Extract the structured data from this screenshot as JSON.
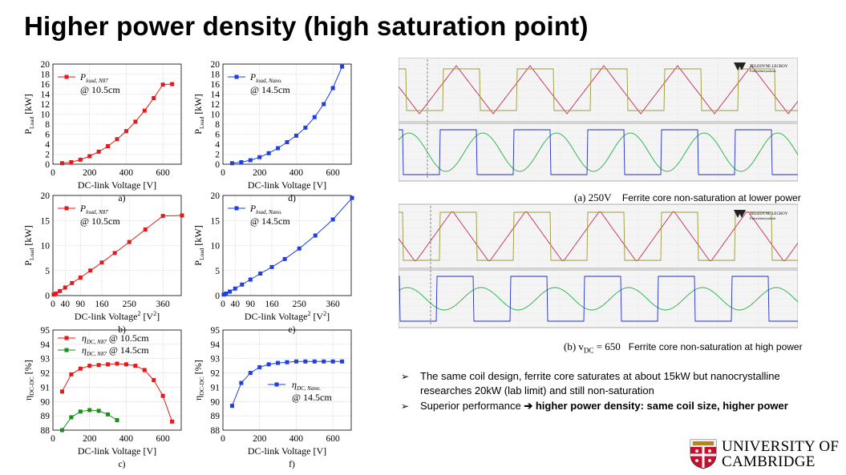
{
  "slide": {
    "title": "Higher power density (high saturation point)"
  },
  "colors": {
    "red": "#e31a1c",
    "blue": "#1f3fe0",
    "green": "#1a8f1a",
    "scope_red": "#c8285a",
    "scope_olive": "#9a9a3a",
    "scope_blue": "#2030c0",
    "scope_green": "#20b040"
  },
  "chart_data": [
    {
      "id": "a",
      "type": "line",
      "caption": "a)",
      "xlabel": "DC-link Voltage  [V]",
      "ylabel_main": "P",
      "ylabel_sub": "Load",
      "ylabel_unit": " [kW]",
      "xlim": [
        0,
        700
      ],
      "ylim": [
        0,
        20
      ],
      "xticks": [
        0,
        200,
        400,
        600
      ],
      "yticks": [
        0,
        2,
        4,
        6,
        8,
        10,
        12,
        14,
        16,
        18,
        20
      ],
      "legend_main": "P",
      "legend_sub": "load, N87",
      "legend_note": "@ 10.5cm",
      "series": [
        {
          "color": "red",
          "marker": "square",
          "x": [
            50,
            100,
            150,
            200,
            250,
            300,
            350,
            400,
            450,
            500,
            550,
            600,
            650
          ],
          "y": [
            0.2,
            0.4,
            0.9,
            1.6,
            2.5,
            3.6,
            5.0,
            6.6,
            8.5,
            10.7,
            13.2,
            15.9,
            16.0
          ]
        }
      ]
    },
    {
      "id": "d",
      "type": "line",
      "caption": "d)",
      "xlabel": "DC-link Voltage  [V]",
      "ylabel_main": "P",
      "ylabel_sub": "Load",
      "ylabel_unit": " [kW]",
      "xlim": [
        0,
        700
      ],
      "ylim": [
        0,
        20
      ],
      "xticks": [
        0,
        200,
        400,
        600
      ],
      "yticks": [
        0,
        2,
        4,
        6,
        8,
        10,
        12,
        14,
        16,
        18,
        20
      ],
      "legend_main": "P",
      "legend_sub": "load, Nano.",
      "legend_note": "@ 14.5cm",
      "series": [
        {
          "color": "blue",
          "marker": "square",
          "x": [
            50,
            100,
            150,
            200,
            250,
            300,
            350,
            400,
            450,
            500,
            550,
            600,
            650
          ],
          "y": [
            0.2,
            0.4,
            0.8,
            1.4,
            2.2,
            3.2,
            4.4,
            5.7,
            7.3,
            9.4,
            12.0,
            15.2,
            19.5
          ]
        }
      ]
    },
    {
      "id": "b",
      "type": "line",
      "caption": "b)",
      "xlabel_main": "DC-link Voltage",
      "xlabel_sup": "2",
      "xlabel_unit": "  [V",
      "xlabel_unit_sup": "2",
      "xlabel_close": "]",
      "ylabel_main": "P",
      "ylabel_sub": "Load",
      "ylabel_unit": " [kW]",
      "xlim": [
        0,
        420
      ],
      "ylim": [
        0,
        20
      ],
      "xticks": [
        0,
        40,
        90,
        160,
        250,
        360
      ],
      "xticklabels": [
        "0",
        "40",
        "90",
        "160",
        "250",
        "360"
      ],
      "yticks": [
        0,
        5,
        10,
        15,
        20
      ],
      "legend_main": "P",
      "legend_sub": "load, N87",
      "legend_note": "@ 10.5cm",
      "series": [
        {
          "color": "red",
          "marker": "square",
          "x": [
            2.5,
            10,
            22.5,
            40,
            62.5,
            90,
            122.5,
            160,
            202.5,
            250,
            302.5,
            360,
            422.5
          ],
          "y": [
            0.2,
            0.4,
            0.9,
            1.6,
            2.5,
            3.6,
            5.0,
            6.6,
            8.5,
            10.7,
            13.2,
            15.9,
            16.0
          ]
        }
      ]
    },
    {
      "id": "e",
      "type": "line",
      "caption": "e)",
      "xlabel_main": "DC-link Voltage",
      "xlabel_sup": "2",
      "xlabel_unit": "  [V",
      "xlabel_unit_sup": "2",
      "xlabel_close": "]",
      "ylabel_main": "P",
      "ylabel_sub": "Load",
      "ylabel_unit": " [kW]",
      "xlim": [
        0,
        420
      ],
      "ylim": [
        0,
        20
      ],
      "xticks": [
        0,
        40,
        90,
        160,
        250,
        360
      ],
      "xticklabels": [
        "0",
        "40",
        "90",
        "160",
        "250",
        "360"
      ],
      "yticks": [
        0,
        5,
        10,
        15,
        20
      ],
      "legend_main": "P",
      "legend_sub": "load, Nano.",
      "legend_note": "@ 14.5cm",
      "series": [
        {
          "color": "blue",
          "marker": "square",
          "x": [
            2.5,
            10,
            22.5,
            40,
            62.5,
            90,
            122.5,
            160,
            202.5,
            250,
            302.5,
            360,
            422.5
          ],
          "y": [
            0.2,
            0.4,
            0.8,
            1.4,
            2.2,
            3.2,
            4.4,
            5.7,
            7.3,
            9.4,
            12.0,
            15.2,
            19.5
          ]
        }
      ]
    },
    {
      "id": "c",
      "type": "line",
      "caption": "c)",
      "xlabel": "DC-link Voltage  [V]",
      "ylabel_main": "η",
      "ylabel_sub": "DC-DC",
      "ylabel_unit": " [%]",
      "xlim": [
        0,
        700
      ],
      "ylim": [
        88,
        95
      ],
      "xticks": [
        0,
        200,
        400,
        600
      ],
      "yticks": [
        88,
        89,
        90,
        91,
        92,
        93,
        94,
        95
      ],
      "legend": [
        {
          "main": "η",
          "sub": "DC, N87",
          "note": " @ 10.5cm",
          "color": "red"
        },
        {
          "main": "η",
          "sub": "DC, N87",
          "note": " @ 14.5cm",
          "color": "green"
        }
      ],
      "series": [
        {
          "color": "red",
          "marker": "square",
          "x": [
            50,
            100,
            150,
            200,
            250,
            300,
            350,
            400,
            450,
            500,
            550,
            600,
            650
          ],
          "y": [
            90.7,
            91.9,
            92.3,
            92.5,
            92.55,
            92.6,
            92.65,
            92.6,
            92.5,
            92.2,
            91.5,
            90.4,
            88.6
          ]
        },
        {
          "color": "green",
          "marker": "square",
          "x": [
            50,
            100,
            150,
            200,
            250,
            300,
            350
          ],
          "y": [
            88.0,
            88.9,
            89.3,
            89.4,
            89.35,
            89.1,
            88.7
          ]
        }
      ]
    },
    {
      "id": "f",
      "type": "line",
      "caption": "f)",
      "xlabel": "DC-link Voltage  [V]",
      "ylabel_main": "η",
      "ylabel_sub": "DC-DC",
      "ylabel_unit": " [%]",
      "xlim": [
        0,
        700
      ],
      "ylim": [
        88,
        95
      ],
      "xticks": [
        0,
        200,
        400,
        600
      ],
      "yticks": [
        88,
        89,
        90,
        91,
        92,
        93,
        94,
        95
      ],
      "legend": [
        {
          "main": "η",
          "sub": "DC, Nano.",
          "note": "@ 14.5cm",
          "color": "blue"
        }
      ],
      "series": [
        {
          "color": "blue",
          "marker": "square",
          "x": [
            50,
            100,
            150,
            200,
            250,
            300,
            350,
            400,
            450,
            500,
            550,
            600,
            650
          ],
          "y": [
            89.7,
            91.3,
            92.0,
            92.4,
            92.6,
            92.7,
            92.75,
            92.8,
            92.8,
            92.8,
            92.8,
            92.8,
            92.8
          ]
        }
      ]
    }
  ],
  "scope": {
    "brand": "TELEDYNE LECROY",
    "brand_sub": "Everywhereyoulook",
    "caption_a_math": "(a) 250V",
    "caption_a_text": "Ferrite core non-saturation at lower power",
    "caption_b_math": "(b) v",
    "caption_b_sub": "DC",
    "caption_b_eq": " = 650",
    "caption_b_text": "Ferrite core non-saturation at high power"
  },
  "bullets": [
    {
      "arrow": "➢",
      "text": "The same coil design, ferrite core saturates at about 15kW but nanocrystalline researches 20kW (lab limit) and still non-saturation",
      "bold": ""
    },
    {
      "arrow": "➢",
      "text": "Superior performance ",
      "arrow2": "➔",
      "bold": " higher power density: same coil size, higher power"
    }
  ],
  "logo": {
    "line1": "UNIVERSITY OF",
    "line2": "CAMBRIDGE"
  }
}
